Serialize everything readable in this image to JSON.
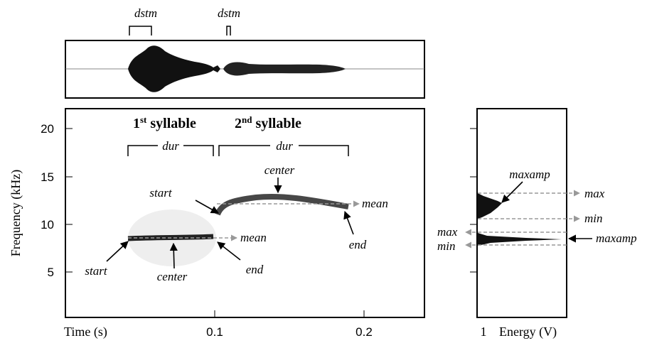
{
  "waveform": {
    "labels": [
      "dstm",
      "dstm"
    ]
  },
  "spectrogram": {
    "y_label": "Frequency (kHz)",
    "x_label": "Time (s)",
    "yticks": [
      5,
      10,
      15,
      20
    ],
    "xticks": [
      0.1,
      0.2
    ],
    "syllables": [
      {
        "ordinal": "1",
        "suffix": "st",
        "label": "syllable",
        "dur": "dur",
        "start": "start",
        "center": "center",
        "mean": "mean",
        "end": "end"
      },
      {
        "ordinal": "2",
        "suffix": "nd",
        "label": "syllable",
        "dur": "dur",
        "start": "start",
        "center": "center",
        "mean": "mean",
        "end": "end"
      }
    ]
  },
  "energy": {
    "x_tick": 1,
    "x_label": "Energy (V)",
    "upper": {
      "maxamp": "maxamp",
      "max": "max",
      "min": "min"
    },
    "lower": {
      "maxamp": "maxamp",
      "max": "max",
      "min": "min"
    }
  }
}
